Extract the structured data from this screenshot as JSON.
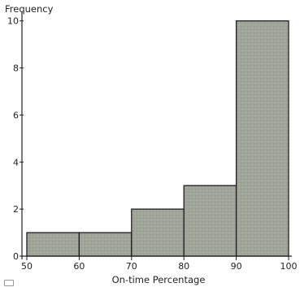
{
  "chart_data": {
    "type": "bar",
    "histogram": true,
    "title": "",
    "xlabel": "On-time Percentage",
    "ylabel": "Frequency",
    "bins": [
      {
        "from": 50,
        "to": 60,
        "value": 1
      },
      {
        "from": 60,
        "to": 70,
        "value": 1
      },
      {
        "from": 70,
        "to": 80,
        "value": 2
      },
      {
        "from": 80,
        "to": 90,
        "value": 3
      },
      {
        "from": 90,
        "to": 100,
        "value": 10
      }
    ],
    "xlim": [
      50,
      100
    ],
    "ylim": [
      0,
      10.3
    ],
    "xticks": [
      50,
      60,
      70,
      80,
      90,
      100
    ],
    "yticks": [
      0,
      2,
      4,
      6,
      8,
      10
    ],
    "grid": false,
    "colors": {
      "bar_fill": "#9fa598",
      "bar_stroke": "#1e1e1e",
      "axis": "#222222"
    }
  },
  "icons": {
    "corner": "keyboard-icon"
  }
}
